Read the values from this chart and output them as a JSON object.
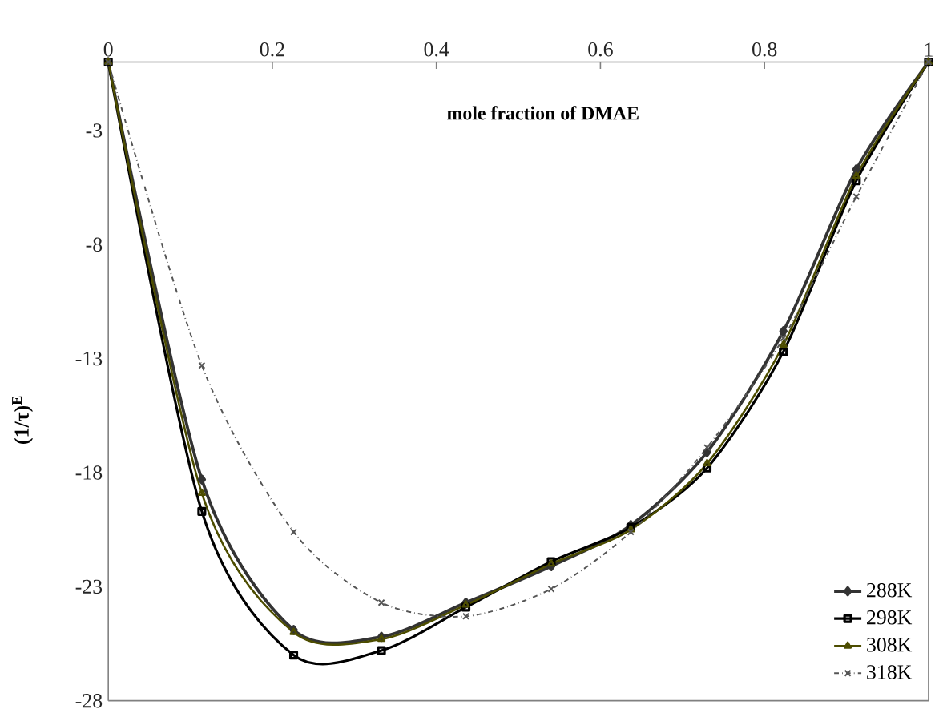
{
  "chart_data": {
    "type": "line",
    "xlabel": "mole fraction of DMAE",
    "ylabel": "(1/τ)$^{E}$",
    "x": [
      0,
      0.114,
      0.226,
      0.333,
      0.436,
      0.54,
      0.637,
      0.73,
      0.823,
      0.912,
      1
    ],
    "xlim": [
      0,
      1
    ],
    "xticks": [
      0,
      0.2,
      0.4,
      0.6,
      0.8,
      1
    ],
    "ylim": [
      -28,
      0
    ],
    "yticks": [
      -28,
      -23,
      -18,
      -13,
      -8,
      -3
    ],
    "legend": "bottom right",
    "grid": false,
    "series": [
      {
        "name": "288K",
        "color": "#333333",
        "marker": "diamond",
        "line_style": "solid",
        "values": [
          0,
          -18.3,
          -24.9,
          -25.2,
          -23.7,
          -22.1,
          -20.3,
          -17.1,
          -11.8,
          -4.7,
          0
        ]
      },
      {
        "name": "298K",
        "color": "#000000",
        "marker": "square",
        "line_style": "solid",
        "values": [
          0,
          -19.7,
          -26.0,
          -25.8,
          -23.9,
          -21.9,
          -20.4,
          -17.8,
          -12.7,
          -5.2,
          0
        ]
      },
      {
        "name": "308K",
        "color": "#4d4d00",
        "marker": "triangle",
        "line_style": "solid",
        "values": [
          0,
          -18.9,
          -25.0,
          -25.3,
          -23.8,
          -22.0,
          -20.5,
          -17.6,
          -12.4,
          -5.0,
          0
        ]
      },
      {
        "name": "318K",
        "color": "#555555",
        "marker": "cross",
        "line_style": "dashdotted",
        "values": [
          0,
          -13.3,
          -20.6,
          -23.7,
          -24.3,
          -23.1,
          -20.6,
          -16.9,
          -12.1,
          -5.9,
          0
        ]
      }
    ]
  }
}
